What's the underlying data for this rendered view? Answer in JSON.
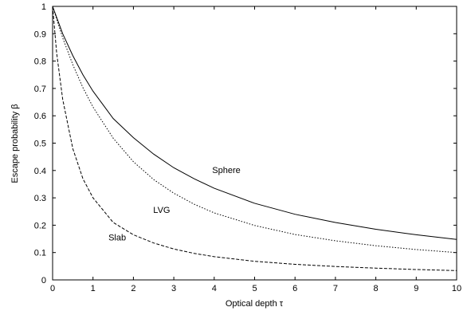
{
  "chart_data": {
    "type": "line",
    "xlabel": "Optical depth τ",
    "ylabel": "Escape probability β",
    "xlim": [
      0,
      10
    ],
    "ylim": [
      0,
      1
    ],
    "xticks": [
      "0",
      "1",
      "2",
      "3",
      "4",
      "5",
      "6",
      "7",
      "8",
      "9",
      "10"
    ],
    "yticks": [
      "0",
      "0.1",
      "0.2",
      "0.3",
      "0.4",
      "0.5",
      "0.6",
      "0.7",
      "0.8",
      "0.9",
      "1"
    ],
    "grid": false,
    "series": [
      {
        "name": "Sphere",
        "style": "solid",
        "x": [
          0,
          0.25,
          0.5,
          0.75,
          1,
          1.5,
          2,
          2.5,
          3,
          3.5,
          4,
          5,
          6,
          7,
          8,
          9,
          10
        ],
        "y": [
          1.0,
          0.9,
          0.82,
          0.75,
          0.69,
          0.59,
          0.52,
          0.46,
          0.41,
          0.37,
          0.335,
          0.28,
          0.24,
          0.21,
          0.185,
          0.165,
          0.148
        ]
      },
      {
        "name": "LVG",
        "style": "dotted",
        "x": [
          0,
          0.25,
          0.5,
          0.75,
          1,
          1.5,
          2,
          2.5,
          3,
          3.5,
          4,
          5,
          6,
          7,
          8,
          9,
          10
        ],
        "y": [
          1.0,
          0.885,
          0.787,
          0.703,
          0.632,
          0.518,
          0.432,
          0.367,
          0.317,
          0.277,
          0.245,
          0.199,
          0.166,
          0.143,
          0.125,
          0.111,
          0.1
        ]
      },
      {
        "name": "Slab",
        "style": "dashed",
        "x": [
          0,
          0.1,
          0.25,
          0.5,
          0.75,
          1,
          1.5,
          2,
          2.5,
          3,
          3.5,
          4,
          5,
          6,
          7,
          8,
          9,
          10
        ],
        "y": [
          1.0,
          0.83,
          0.66,
          0.48,
          0.37,
          0.3,
          0.21,
          0.165,
          0.135,
          0.113,
          0.097,
          0.085,
          0.068,
          0.057,
          0.049,
          0.043,
          0.038,
          0.034
        ]
      }
    ],
    "annotations": [
      {
        "text": "Sphere",
        "x": 4.3,
        "y": 0.39
      },
      {
        "text": "LVG",
        "x": 2.7,
        "y": 0.245
      },
      {
        "text": "Slab",
        "x": 1.6,
        "y": 0.145
      }
    ]
  }
}
